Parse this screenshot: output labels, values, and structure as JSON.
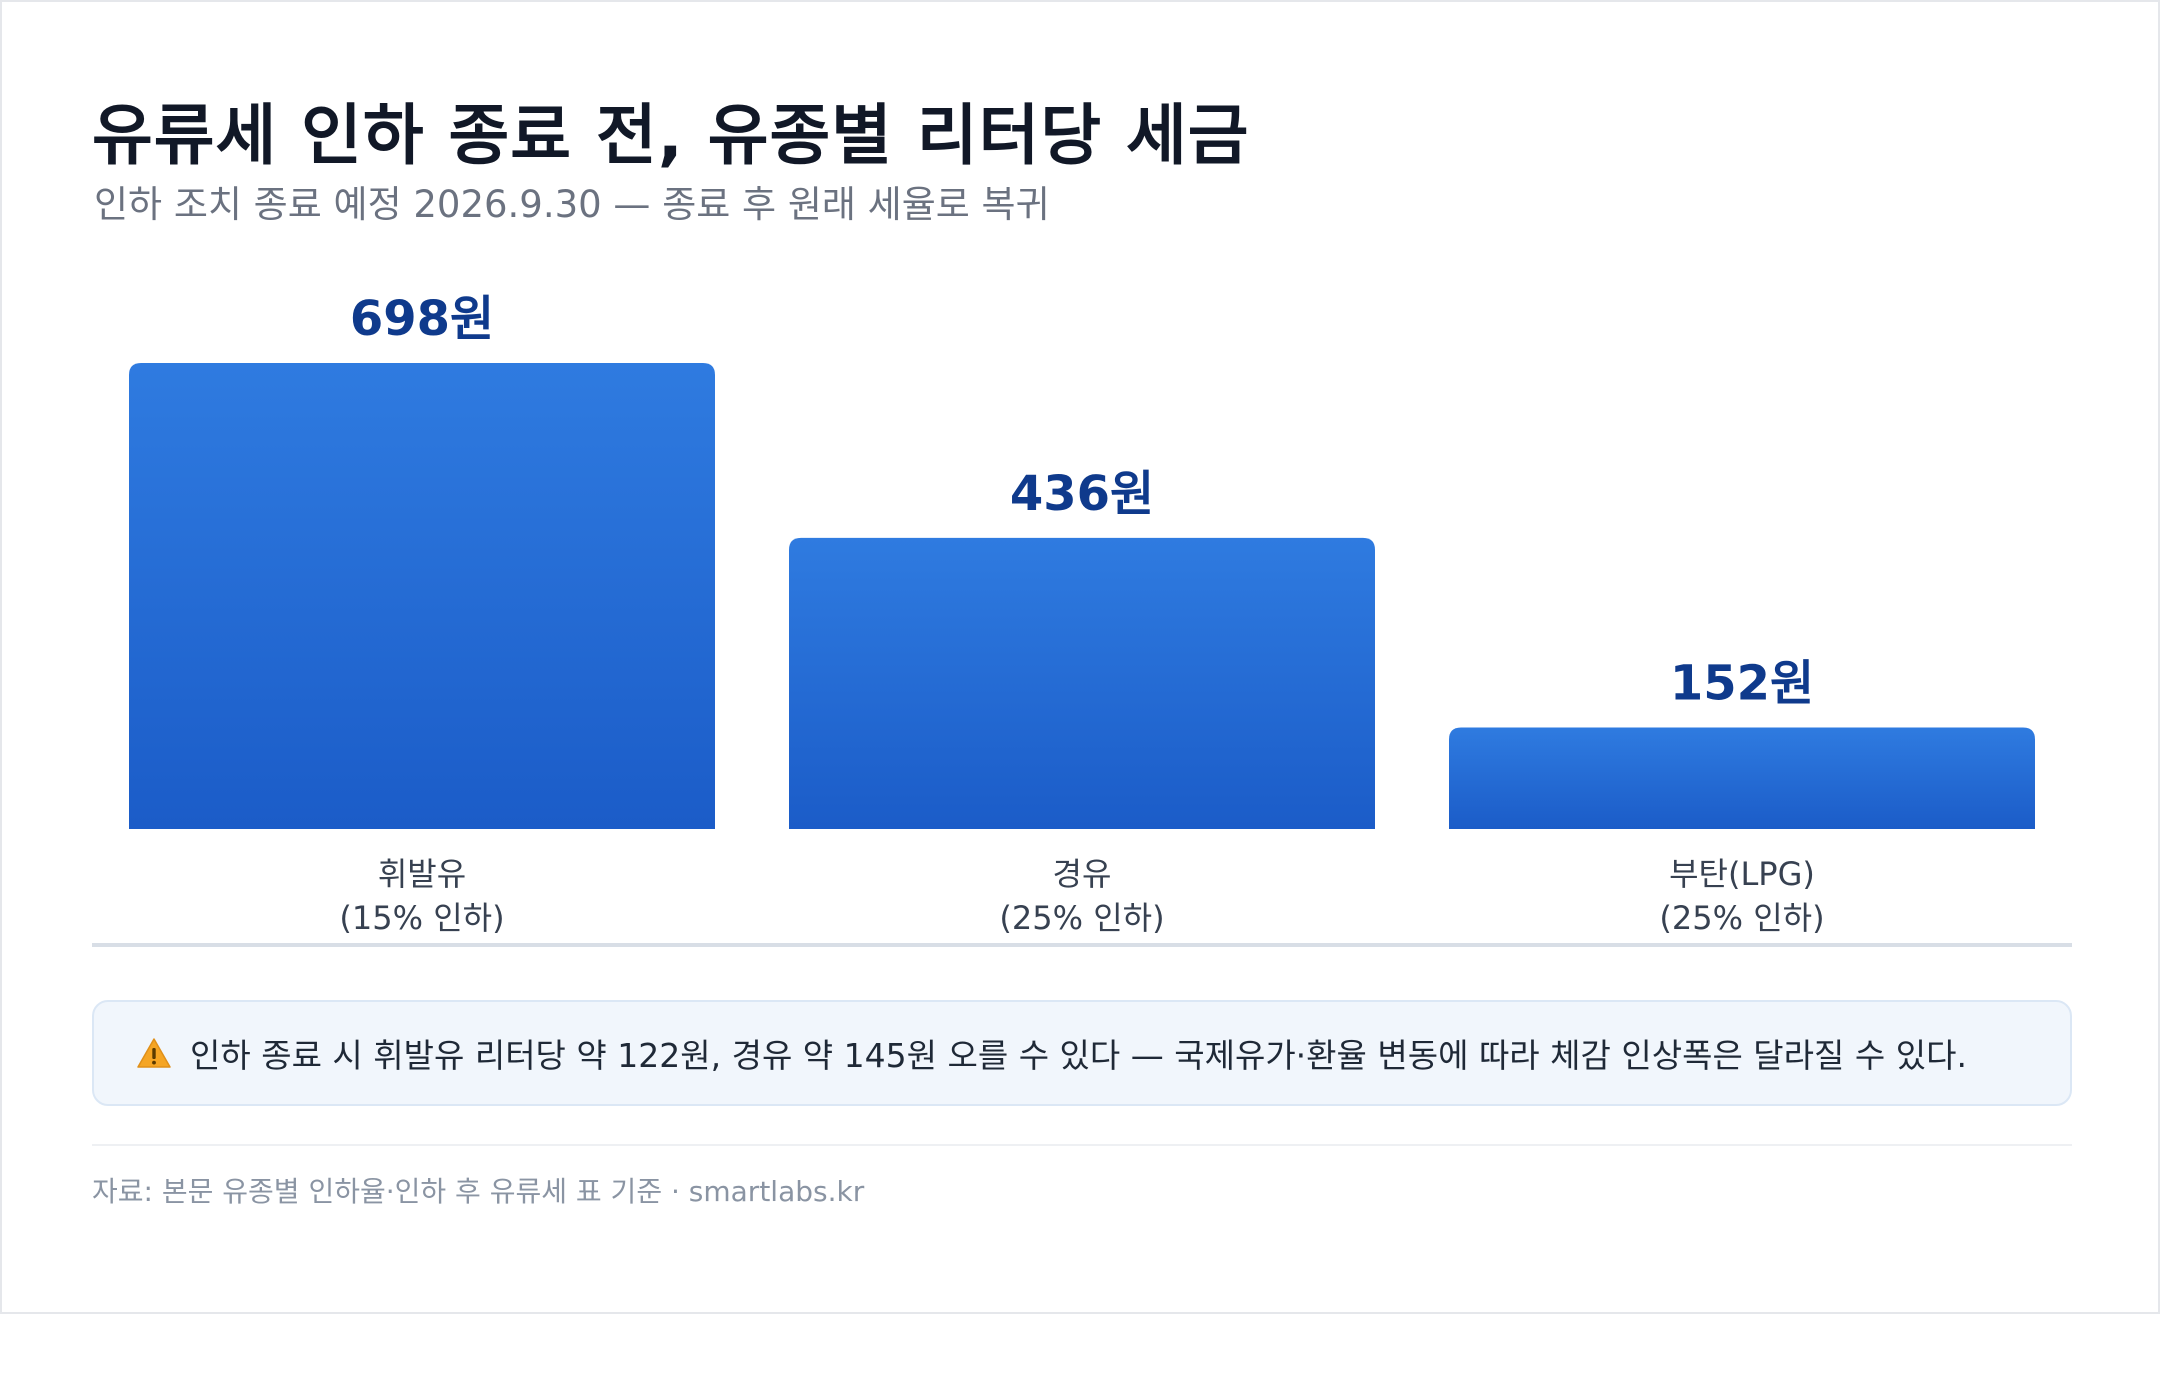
{
  "header": {
    "title": "유류세 인하 종료 전, 유종별 리터당 세금",
    "subtitle": "인하 조치 종료 예정 2026.9.30 — 종료 후 원래 세율로 복귀"
  },
  "chart_data": {
    "type": "bar",
    "categories": [
      "휘발유",
      "경유",
      "부탄(LPG)"
    ],
    "category_notes": [
      "(15% 인하)",
      "(25% 인하)",
      "(25% 인하)"
    ],
    "values": [
      698,
      436,
      152
    ],
    "value_labels": [
      "698원",
      "436원",
      "152원"
    ],
    "ylim": [
      0,
      698
    ],
    "grid": false,
    "bar_color": "#2563d6"
  },
  "notice": {
    "icon": "warning-icon",
    "text": "인하 종료 시 휘발유 리터당 약 122원, 경유 약 145원 오를 수 있다 — 국제유가·환율 변동에 따라 체감 인상폭은 달라질 수 있다."
  },
  "footer": {
    "source": "자료: 본문 유종별 인하율·인하 후 유류세 표 기준 · smartlabs.kr"
  },
  "colors": {
    "value_text": "#0f3a8c",
    "bar_top": "#2f7be0",
    "bar_bottom": "#1b5cc8",
    "baseline": "#d8dee6",
    "warning": "#f5a524"
  }
}
